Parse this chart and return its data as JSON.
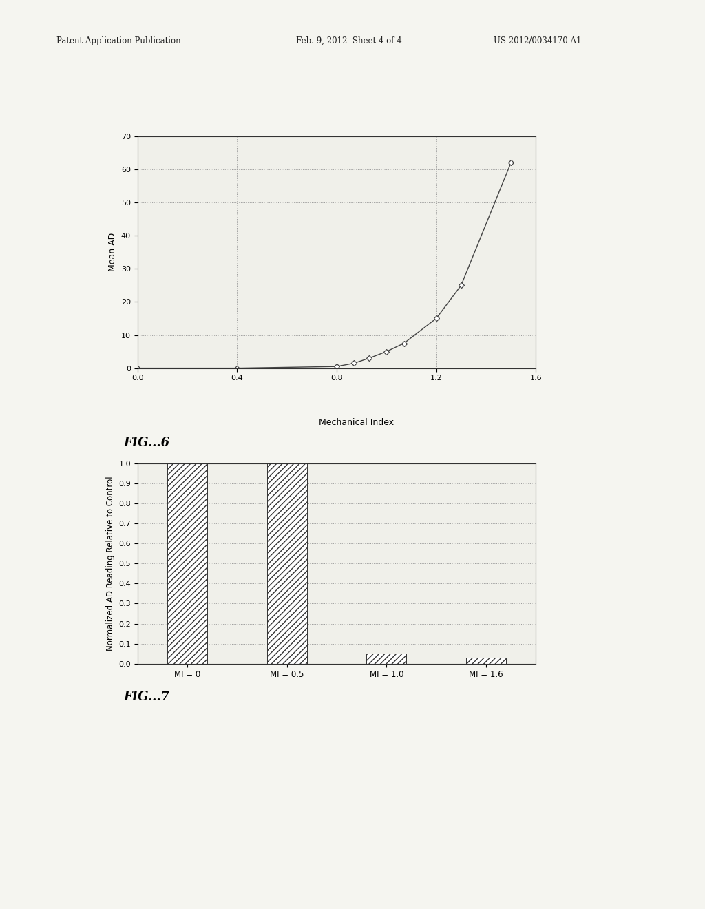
{
  "fig6": {
    "x": [
      0.0,
      0.4,
      0.8,
      0.87,
      0.93,
      1.0,
      1.07,
      1.2,
      1.3,
      1.5
    ],
    "y": [
      0.0,
      0.0,
      0.5,
      1.5,
      3.0,
      5.0,
      7.5,
      15.0,
      25.0,
      62.0
    ],
    "xlabel": "Mechanical Index",
    "ylabel": "Mean AD",
    "xlim": [
      0.0,
      1.6
    ],
    "ylim": [
      0,
      70
    ],
    "xticks": [
      0.0,
      0.4,
      0.8,
      1.2,
      1.6
    ],
    "yticks": [
      0,
      10,
      20,
      30,
      40,
      50,
      60,
      70
    ],
    "fig_label": "FIG...6"
  },
  "fig7": {
    "categories": [
      "MI = 0",
      "MI = 0.5",
      "MI = 1.0",
      "MI = 1.6"
    ],
    "values": [
      1.0,
      1.0,
      0.05,
      0.03
    ],
    "ylabel": "Normalized AD Reading Relative to Control",
    "ylim": [
      0.0,
      1.0
    ],
    "yticks": [
      0.0,
      0.1,
      0.2,
      0.3,
      0.4,
      0.5,
      0.6,
      0.7,
      0.8,
      0.9,
      1.0
    ],
    "fig_label": "FIG...7"
  },
  "page_header_left": "Patent Application Publication",
  "page_header_mid": "Feb. 9, 2012  Sheet 4 of 4",
  "page_header_right": "US 2012/0034170 A1",
  "background_color": "#f5f5f0",
  "plot_bg": "#f0f0ea",
  "line_color": "#444444",
  "grid_color": "#999999"
}
